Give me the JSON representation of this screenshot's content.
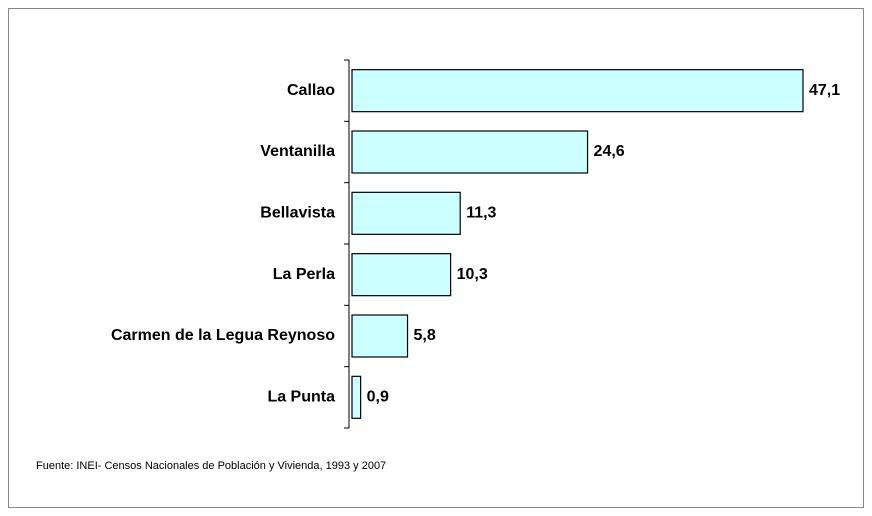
{
  "chart_data": {
    "type": "bar",
    "orientation": "horizontal",
    "categories": [
      "Callao",
      "Ventanilla",
      "Bellavista",
      "La Perla",
      "Carmen de la Legua Reynoso",
      "La Punta"
    ],
    "values": [
      47.1,
      24.6,
      11.3,
      10.3,
      5.8,
      0.9
    ],
    "value_labels": [
      "47,1",
      "24,6",
      "11,3",
      "10,3",
      "5,8",
      "0,9"
    ],
    "color": "#ccffff",
    "source": "Fuente: INEI- Censos Nacionales de Población y Vivienda, 1993 y 2007"
  }
}
